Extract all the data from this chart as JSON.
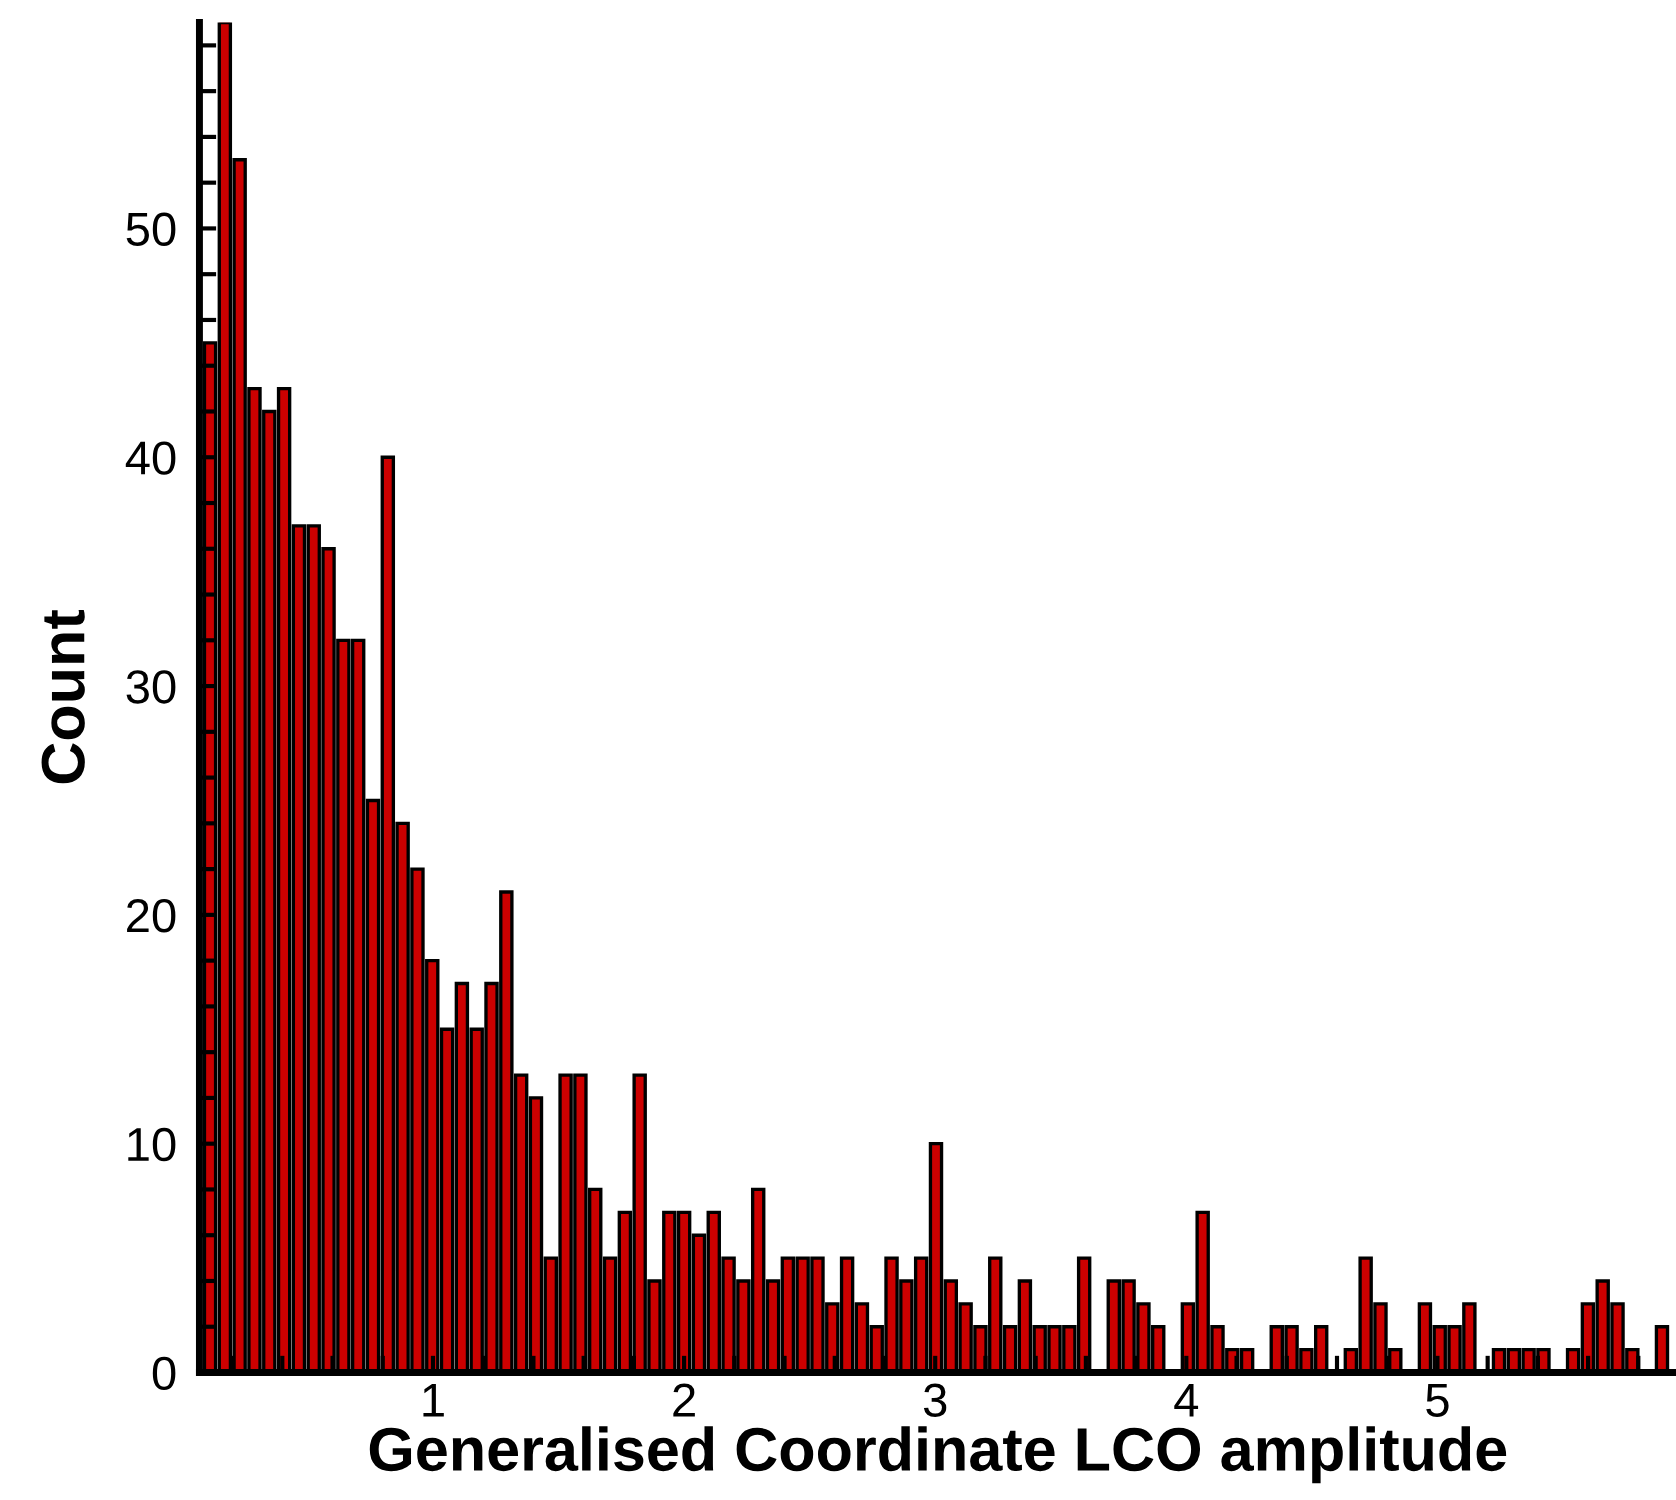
{
  "chart_data": {
    "type": "histogram",
    "xlabel": "Generalised Coordinate LCO amplitude",
    "ylabel": "Count",
    "bins": [
      0.09,
      0.149,
      0.208,
      0.267,
      0.326,
      0.385,
      0.444,
      0.503,
      0.562,
      0.621,
      0.68,
      0.739,
      0.798,
      0.857,
      0.916,
      0.975,
      1.034,
      1.093,
      1.152,
      1.211,
      1.27,
      1.329,
      1.388,
      1.447,
      1.506,
      1.565,
      1.624,
      1.683,
      1.742,
      1.801,
      1.86,
      1.919,
      1.978,
      2.037,
      2.096,
      2.155,
      2.214,
      2.273,
      2.332,
      2.391,
      2.45,
      2.509,
      2.568,
      2.627,
      2.686,
      2.745,
      2.804,
      2.863,
      2.922,
      2.981,
      3.04,
      3.099,
      3.158,
      3.217,
      3.276,
      3.335,
      3.394,
      3.453,
      3.512,
      3.571,
      3.63,
      3.689,
      3.748,
      3.807,
      3.866,
      3.925,
      3.984,
      4.043,
      4.102,
      4.161,
      4.22,
      4.279,
      4.338,
      4.397,
      4.456,
      4.515,
      4.574,
      4.633,
      4.692,
      4.751,
      4.81,
      4.869,
      4.928,
      4.987,
      5.046,
      5.105,
      5.164,
      5.223,
      5.282,
      5.341,
      5.4,
      5.459,
      5.518,
      5.577,
      5.636,
      5.695,
      5.754,
      5.813,
      5.872,
      5.931
    ],
    "values": [
      45,
      59,
      53,
      43,
      42,
      43,
      37,
      37,
      36,
      32,
      32,
      25,
      40,
      24,
      22,
      18,
      15,
      17,
      15,
      17,
      21,
      13,
      12,
      5,
      13,
      13,
      8,
      5,
      7,
      13,
      4,
      7,
      7,
      6,
      7,
      5,
      4,
      8,
      4,
      5,
      5,
      5,
      3,
      5,
      3,
      2,
      5,
      4,
      5,
      10,
      4,
      3,
      2,
      5,
      2,
      4,
      2,
      2,
      2,
      5,
      0,
      4,
      4,
      3,
      2,
      0,
      3,
      7,
      2,
      1,
      1,
      0,
      2,
      2,
      1,
      2,
      0,
      1,
      5,
      3,
      1,
      0,
      3,
      2,
      2,
      3,
      0,
      1,
      1,
      1,
      1,
      0,
      1,
      3,
      4,
      3,
      1,
      0,
      2
    ],
    "color": "#cc0000",
    "xlim": [
      0.07,
      5.95
    ],
    "xticks": [
      1,
      2,
      3,
      4,
      5,
      {
        "value": 0.2,
        "label": null
      },
      {
        "value": 0.4,
        "label": null
      },
      {
        "value": 0.6,
        "label": null
      },
      {
        "value": 0.8,
        "label": null
      },
      {
        "value": 1.2,
        "label": null
      },
      {
        "value": 1.4,
        "label": null
      },
      {
        "value": 1.6,
        "label": null
      },
      {
        "value": 1.8,
        "label": null
      },
      {
        "value": 2.2,
        "label": null
      },
      {
        "value": 2.4,
        "label": null
      },
      {
        "value": 2.6,
        "label": null
      },
      {
        "value": 2.8,
        "label": null
      },
      {
        "value": 3.2,
        "label": null
      },
      {
        "value": 3.4,
        "label": null
      },
      {
        "value": 3.6,
        "label": null
      },
      {
        "value": 3.8,
        "label": null
      },
      {
        "value": 4.2,
        "label": null
      },
      {
        "value": 4.4,
        "label": null
      },
      {
        "value": 4.6,
        "label": null
      },
      {
        "value": 4.8,
        "label": null
      },
      {
        "value": 5.2,
        "label": null
      },
      {
        "value": 5.4,
        "label": null
      },
      {
        "value": 5.6,
        "label": null
      },
      {
        "value": 5.8,
        "label": null
      }
    ],
    "ylim": [
      0,
      59
    ],
    "yticks": [
      0,
      10,
      20,
      30,
      40,
      50,
      {
        "value": 2,
        "label": null
      },
      {
        "value": 4,
        "label": null
      },
      {
        "value": 6,
        "label": null
      },
      {
        "value": 8,
        "label": null
      },
      {
        "value": 12,
        "label": null
      },
      {
        "value": 14,
        "label": null
      },
      {
        "value": 16,
        "label": null
      },
      {
        "value": 18,
        "label": null
      },
      {
        "value": 22,
        "label": null
      },
      {
        "value": 24,
        "label": null
      },
      {
        "value": 26,
        "label": null
      },
      {
        "value": 28,
        "label": null
      },
      {
        "value": 32,
        "label": null
      },
      {
        "value": 34,
        "label": null
      },
      {
        "value": 36,
        "label": null
      },
      {
        "value": 38,
        "label": null
      },
      {
        "value": 42,
        "label": null
      },
      {
        "value": 44,
        "label": null
      },
      {
        "value": 46,
        "label": null
      },
      {
        "value": 48,
        "label": null
      },
      {
        "value": 52,
        "label": null
      },
      {
        "value": 54,
        "label": null
      },
      {
        "value": 56,
        "label": null
      },
      {
        "value": 58,
        "label": null
      }
    ],
    "grid": false,
    "legend": false
  }
}
